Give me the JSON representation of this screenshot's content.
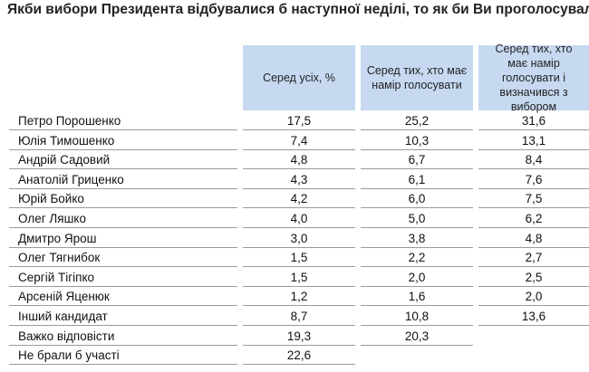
{
  "title": "Якби вибори Президента відбувалися б наступної неділі, то як би Ви проголосували?",
  "table": {
    "columns": [
      "Серед усіх, %",
      "Серед тих, хто має намір голосувати",
      "Серед тих, хто має намір голосувати і визначився з вибором"
    ],
    "rows": [
      [
        "Петро Порошенко",
        "17,5",
        "25,2",
        "31,6"
      ],
      [
        "Юлія Тимошенко",
        "7,4",
        "10,3",
        "13,1"
      ],
      [
        "Андрій Садовий",
        "4,8",
        "6,7",
        "8,4"
      ],
      [
        "Анатолій Гриценко",
        "4,3",
        "6,1",
        "7,6"
      ],
      [
        "Юрій Бойко",
        "4,2",
        "6,0",
        "7,5"
      ],
      [
        "Олег Ляшко",
        "4,0",
        "5,0",
        "6,2"
      ],
      [
        "Дмитро Ярош",
        "3,0",
        "3,8",
        "4,8"
      ],
      [
        "Олег Тягнибок",
        "1,5",
        "2,2",
        "2,7"
      ],
      [
        "Сергій Тігіпко",
        "1,5",
        "2,0",
        "2,5"
      ],
      [
        "Арсеній Яценюк",
        "1,2",
        "1,6",
        "2,0"
      ],
      [
        "Інший кандидат",
        "8,7",
        "10,8",
        "13,6"
      ],
      [
        "Важко відповісти",
        "19,3",
        "20,3"
      ],
      [
        "Не брали б участі",
        "22,6"
      ]
    ]
  }
}
